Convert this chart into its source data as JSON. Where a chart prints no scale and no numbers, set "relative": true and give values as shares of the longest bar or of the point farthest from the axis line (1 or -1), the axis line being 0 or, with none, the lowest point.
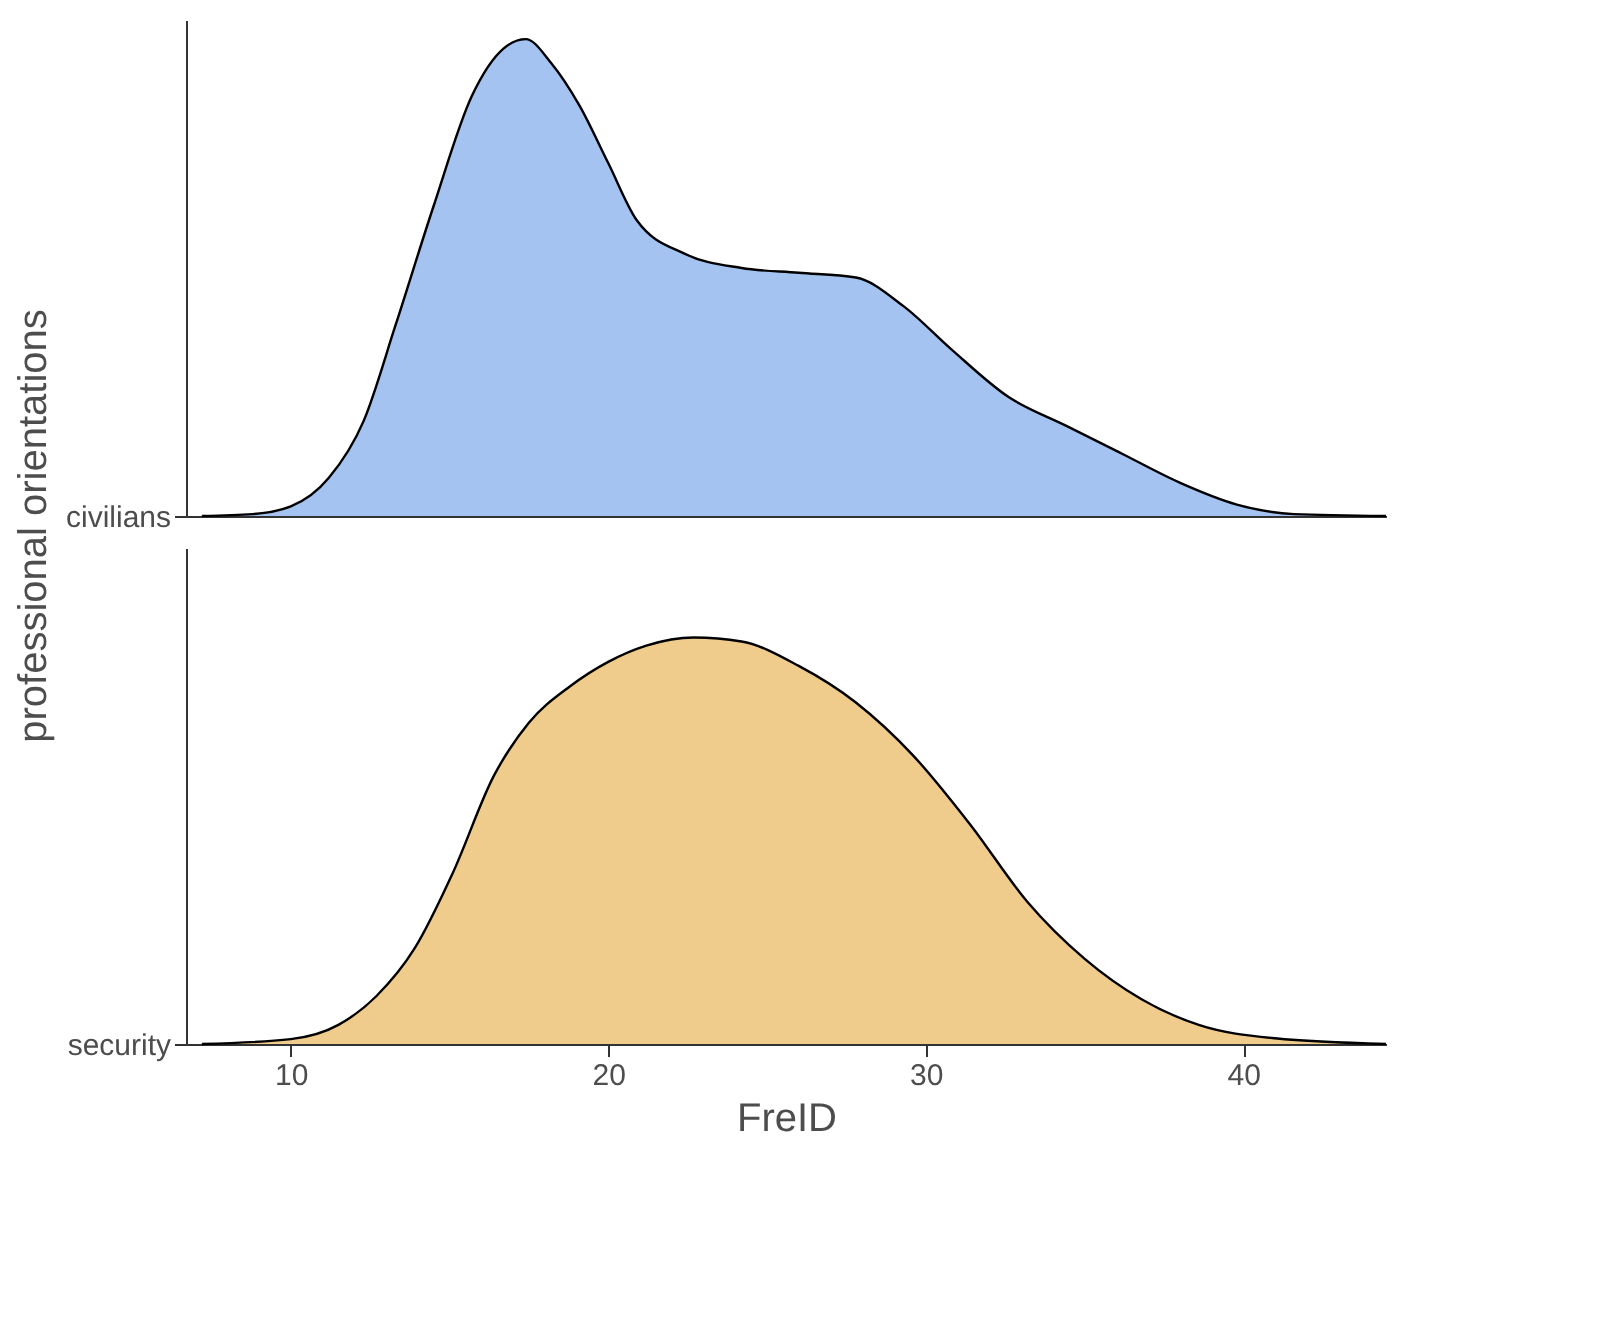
{
  "chart_data": [
    {
      "type": "area",
      "relative": true,
      "ylabel": "professional orientations",
      "xlim": [
        6.7,
        44.5
      ],
      "xticks": [
        10,
        20,
        30,
        40
      ],
      "tick_labels": "y",
      "grid": false,
      "series": [
        {
          "name": "civilians",
          "color": "#a4c3f0",
          "x": [
            7.2,
            8.8,
            10.0,
            11.2,
            12.3,
            13.3,
            14.5,
            15.7,
            16.7,
            17.4,
            18.2,
            19.1,
            20.0,
            20.9,
            22.4,
            24.2,
            26.0,
            27.8,
            29.3,
            30.8,
            32.6,
            34.4,
            36.2,
            38.0,
            39.8,
            41.6,
            44.5
          ],
          "values": [
            0,
            0.004,
            0.02,
            0.08,
            0.2,
            0.4,
            0.65,
            0.88,
            0.98,
            1.0,
            0.95,
            0.86,
            0.74,
            0.62,
            0.55,
            0.52,
            0.51,
            0.5,
            0.44,
            0.35,
            0.25,
            0.19,
            0.13,
            0.07,
            0.024,
            0.004,
            0
          ]
        }
      ]
    },
    {
      "type": "area",
      "relative": true,
      "xlabel": "FreID",
      "xlim": [
        6.7,
        44.5
      ],
      "xticks": [
        10,
        20,
        30,
        40
      ],
      "grid": false,
      "series": [
        {
          "name": "security",
          "color": "#efcb8c",
          "x": [
            7.2,
            10.0,
            11.5,
            12.7,
            13.9,
            15.1,
            16.4,
            17.5,
            18.8,
            20.0,
            21.2,
            22.7,
            24.2,
            26.0,
            27.8,
            29.6,
            31.4,
            33.2,
            35.0,
            36.8,
            38.6,
            41.0,
            44.5
          ],
          "values": [
            0,
            0.012,
            0.047,
            0.118,
            0.235,
            0.42,
            0.66,
            0.79,
            0.88,
            0.94,
            0.98,
            1.0,
            0.99,
            0.93,
            0.84,
            0.71,
            0.54,
            0.35,
            0.21,
            0.11,
            0.047,
            0.014,
            0
          ]
        }
      ]
    }
  ]
}
